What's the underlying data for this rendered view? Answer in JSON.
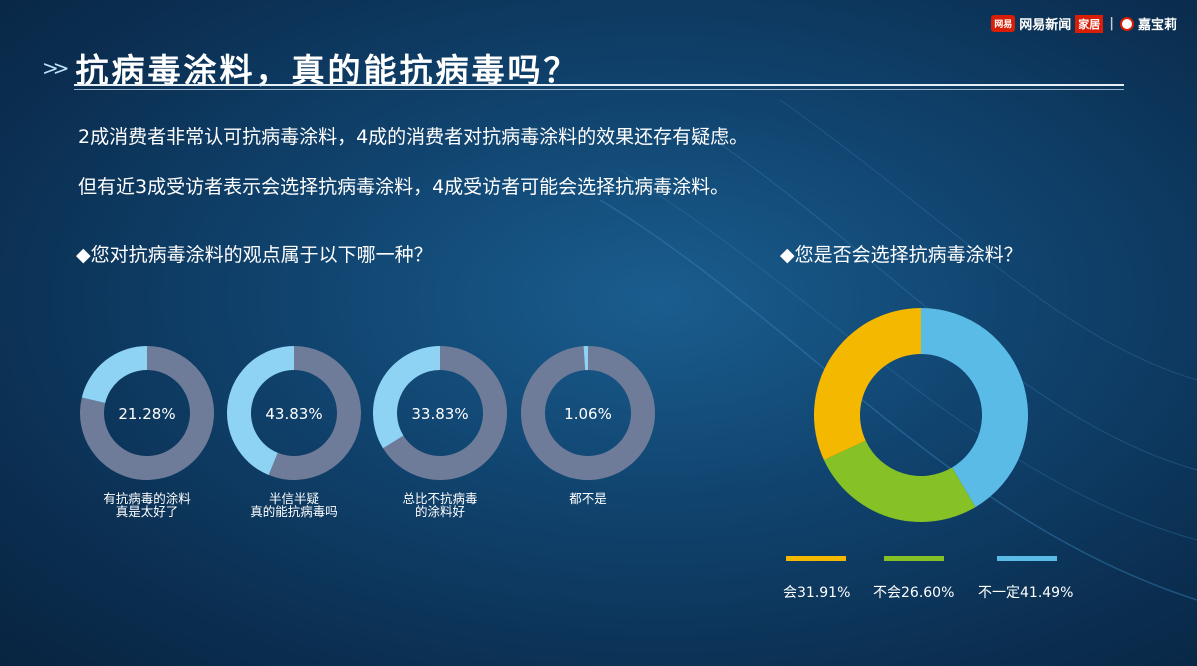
{
  "brand": {
    "logo_text": "网易",
    "name": "网易新闻",
    "tag": "家居",
    "separator": "|",
    "partner": "嘉宝莉"
  },
  "title": "抗病毒涂料，真的能抗病毒吗？",
  "summary": [
    "2成消费者非常认可抗病毒涂料，4成的消费者对抗病毒涂料的效果还存有疑虑。",
    "但有近3成受访者表示会选择抗病毒涂料，4成受访者可能会选择抗病毒涂料。"
  ],
  "colors": {
    "track": "#6f7c99",
    "highlight": "#8fd3f4",
    "yes": "#f5b800",
    "no": "#86c226",
    "maybe": "#5bbbe7"
  },
  "chart_data": [
    {
      "type": "pie",
      "title": "◆您对抗病毒涂料的观点属于以下哪一种？",
      "categories": [
        "有抗病毒的涂料\n真是太好了",
        "半信半疑\n真的能抗病毒吗",
        "总比不抗病毒\n的涂料好",
        "都不是"
      ],
      "values": [
        21.28,
        43.83,
        33.83,
        1.06
      ],
      "labels": [
        "21.28%",
        "43.83%",
        "33.83%",
        "1.06%"
      ]
    },
    {
      "type": "pie",
      "title": "◆您是否会选择抗病毒涂料？",
      "categories": [
        "会",
        "不会",
        "不一定"
      ],
      "values": [
        31.91,
        26.6,
        41.49
      ],
      "legend": [
        "会31.91%",
        "不会26.60%",
        "不一定41.49%"
      ]
    }
  ]
}
